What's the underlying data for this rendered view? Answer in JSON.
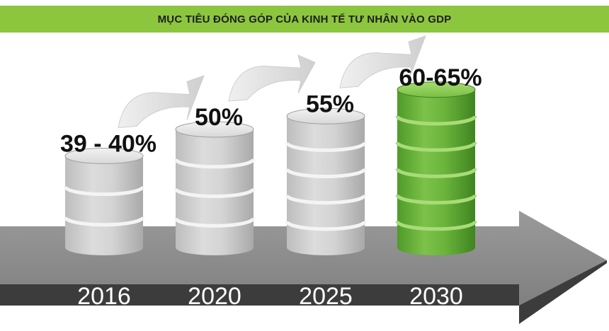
{
  "chart_data": {
    "type": "bar",
    "title": "MỤC TIÊU ĐÓNG GÓP CỦA KINH TẾ TƯ NHÂN VÀO GDP",
    "categories": [
      "2016",
      "2020",
      "2025",
      "2030"
    ],
    "data_labels": [
      "39 - 40%",
      "50%",
      "55%",
      "60-65%"
    ],
    "values": [
      40,
      50,
      55,
      65
    ],
    "ranges": [
      [
        39,
        40
      ],
      [
        50,
        50
      ],
      [
        55,
        55
      ],
      [
        60,
        65
      ]
    ],
    "unit": "%",
    "colors": {
      "title_bar": "#8cc63f",
      "bar_gray": "#d0d0d0",
      "bar_highlight": "#5aa830",
      "arrow_light": "#888888",
      "arrow_dark": "#3a3a3a"
    }
  }
}
